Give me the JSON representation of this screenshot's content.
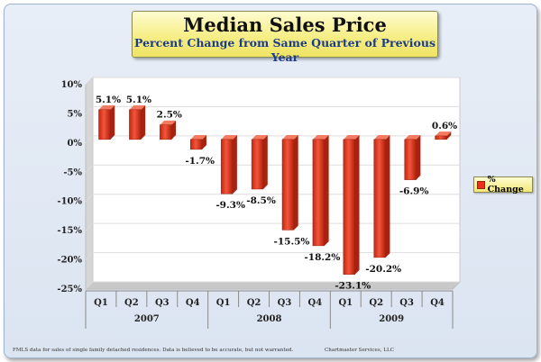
{
  "title": "Median Sales Price",
  "subtitle": "Percent Change from Same Quarter of Previous Year",
  "legend_label": "% Change",
  "footnote_left": "FMLS data for sales of single family detached residences.  Data is believed to be accurate, but not warranted.",
  "footnote_right": "Chartmaster Services, LLC",
  "colors": {
    "bar": "#e8321e",
    "bar_dark": "#a8220f",
    "legend_bg": "#f6ee86"
  },
  "chart_data": {
    "type": "bar",
    "categories": [
      "Q1",
      "Q2",
      "Q3",
      "Q4",
      "Q1",
      "Q2",
      "Q3",
      "Q4",
      "Q1",
      "Q2",
      "Q3",
      "Q4"
    ],
    "groups": [
      {
        "label": "2007",
        "count": 4
      },
      {
        "label": "2008",
        "count": 4
      },
      {
        "label": "2009",
        "count": 4
      }
    ],
    "series": [
      {
        "name": "% Change",
        "values": [
          5.1,
          5.1,
          2.5,
          -1.7,
          -9.3,
          -8.5,
          -15.5,
          -18.2,
          -23.1,
          -20.2,
          -6.9,
          0.6
        ]
      }
    ],
    "data_labels": [
      "5.1%",
      "5.1%",
      "2.5%",
      "-1.7%",
      "-9.3%",
      "-8.5%",
      "-15.5%",
      "-18.2%",
      "-23.1%",
      "-20.2%",
      "-6.9%",
      "0.6%"
    ],
    "y_ticks": [
      "10%",
      "5%",
      "0%",
      "-5%",
      "-10%",
      "-15%",
      "-20%",
      "-25%"
    ],
    "y_tick_values": [
      10,
      5,
      0,
      -5,
      -10,
      -15,
      -20,
      -25
    ],
    "ylim": [
      -25,
      10
    ],
    "legend_position": "right"
  }
}
